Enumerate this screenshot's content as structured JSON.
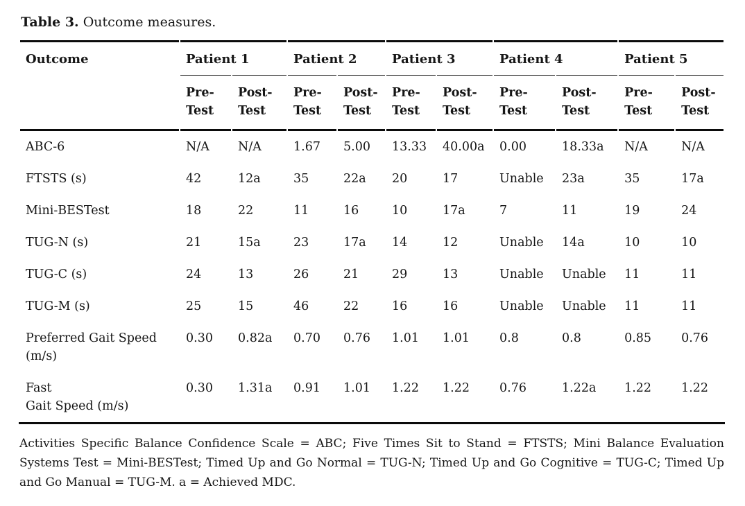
{
  "title": {
    "bold": "Table 3.",
    "rest": " Outcome measures."
  },
  "table": {
    "corner_header": "Outcome",
    "patients": [
      "Patient 1",
      "Patient 2",
      "Patient 3",
      "Patient 4",
      "Patient 5"
    ],
    "subheader_pre": "Pre-\nTest",
    "subheader_post": "Post-\nTest",
    "rows": [
      {
        "label": "ABC-6",
        "values": [
          "N/A",
          "N/A",
          "1.67",
          "5.00",
          "13.33",
          "40.00a",
          "0.00",
          "18.33a",
          "N/A",
          "N/A"
        ]
      },
      {
        "label": "FTSTS (s)",
        "values": [
          "42",
          "12a",
          "35",
          "22a",
          "20",
          "17",
          "Unable",
          "23a",
          "35",
          "17a"
        ]
      },
      {
        "label": "Mini-BESTest",
        "values": [
          "18",
          "22",
          "11",
          "16",
          "10",
          "17a",
          "7",
          "11",
          "19",
          "24"
        ]
      },
      {
        "label": "TUG-N (s)",
        "values": [
          "21",
          "15a",
          "23",
          "17a",
          "14",
          "12",
          "Unable",
          "14a",
          "10",
          "10"
        ]
      },
      {
        "label": "TUG-C (s)",
        "values": [
          "24",
          "13",
          "26",
          "21",
          "29",
          "13",
          "Unable",
          "Unable",
          "11",
          "11"
        ]
      },
      {
        "label": "TUG-M (s)",
        "values": [
          "25",
          "15",
          "46",
          "22",
          "16",
          "16",
          "Unable",
          "Unable",
          "11",
          "11"
        ]
      },
      {
        "label": "Preferred Gait Speed\n(m/s)",
        "values": [
          "0.30",
          "0.82a",
          "0.70",
          "0.76",
          "1.01",
          "1.01",
          "0.8",
          "0.8",
          "0.85",
          "0.76"
        ]
      },
      {
        "label": "Fast\nGait Speed (m/s)",
        "values": [
          "0.30",
          "1.31a",
          "0.91",
          "1.01",
          "1.22",
          "1.22",
          "0.76",
          "1.22a",
          "1.22",
          "1.22"
        ]
      }
    ]
  },
  "footnote": "Activities Specific Balance Confidence Scale = ABC; Five Times Sit to Stand = FTSTS; Mini Balance Evaluation Systems Test = Mini-BESTest; Timed Up and Go Normal = TUG-N; Timed Up and Go Cognitive = TUG-C; Timed Up and Go Manual = TUG-M. a = Achieved MDC."
}
